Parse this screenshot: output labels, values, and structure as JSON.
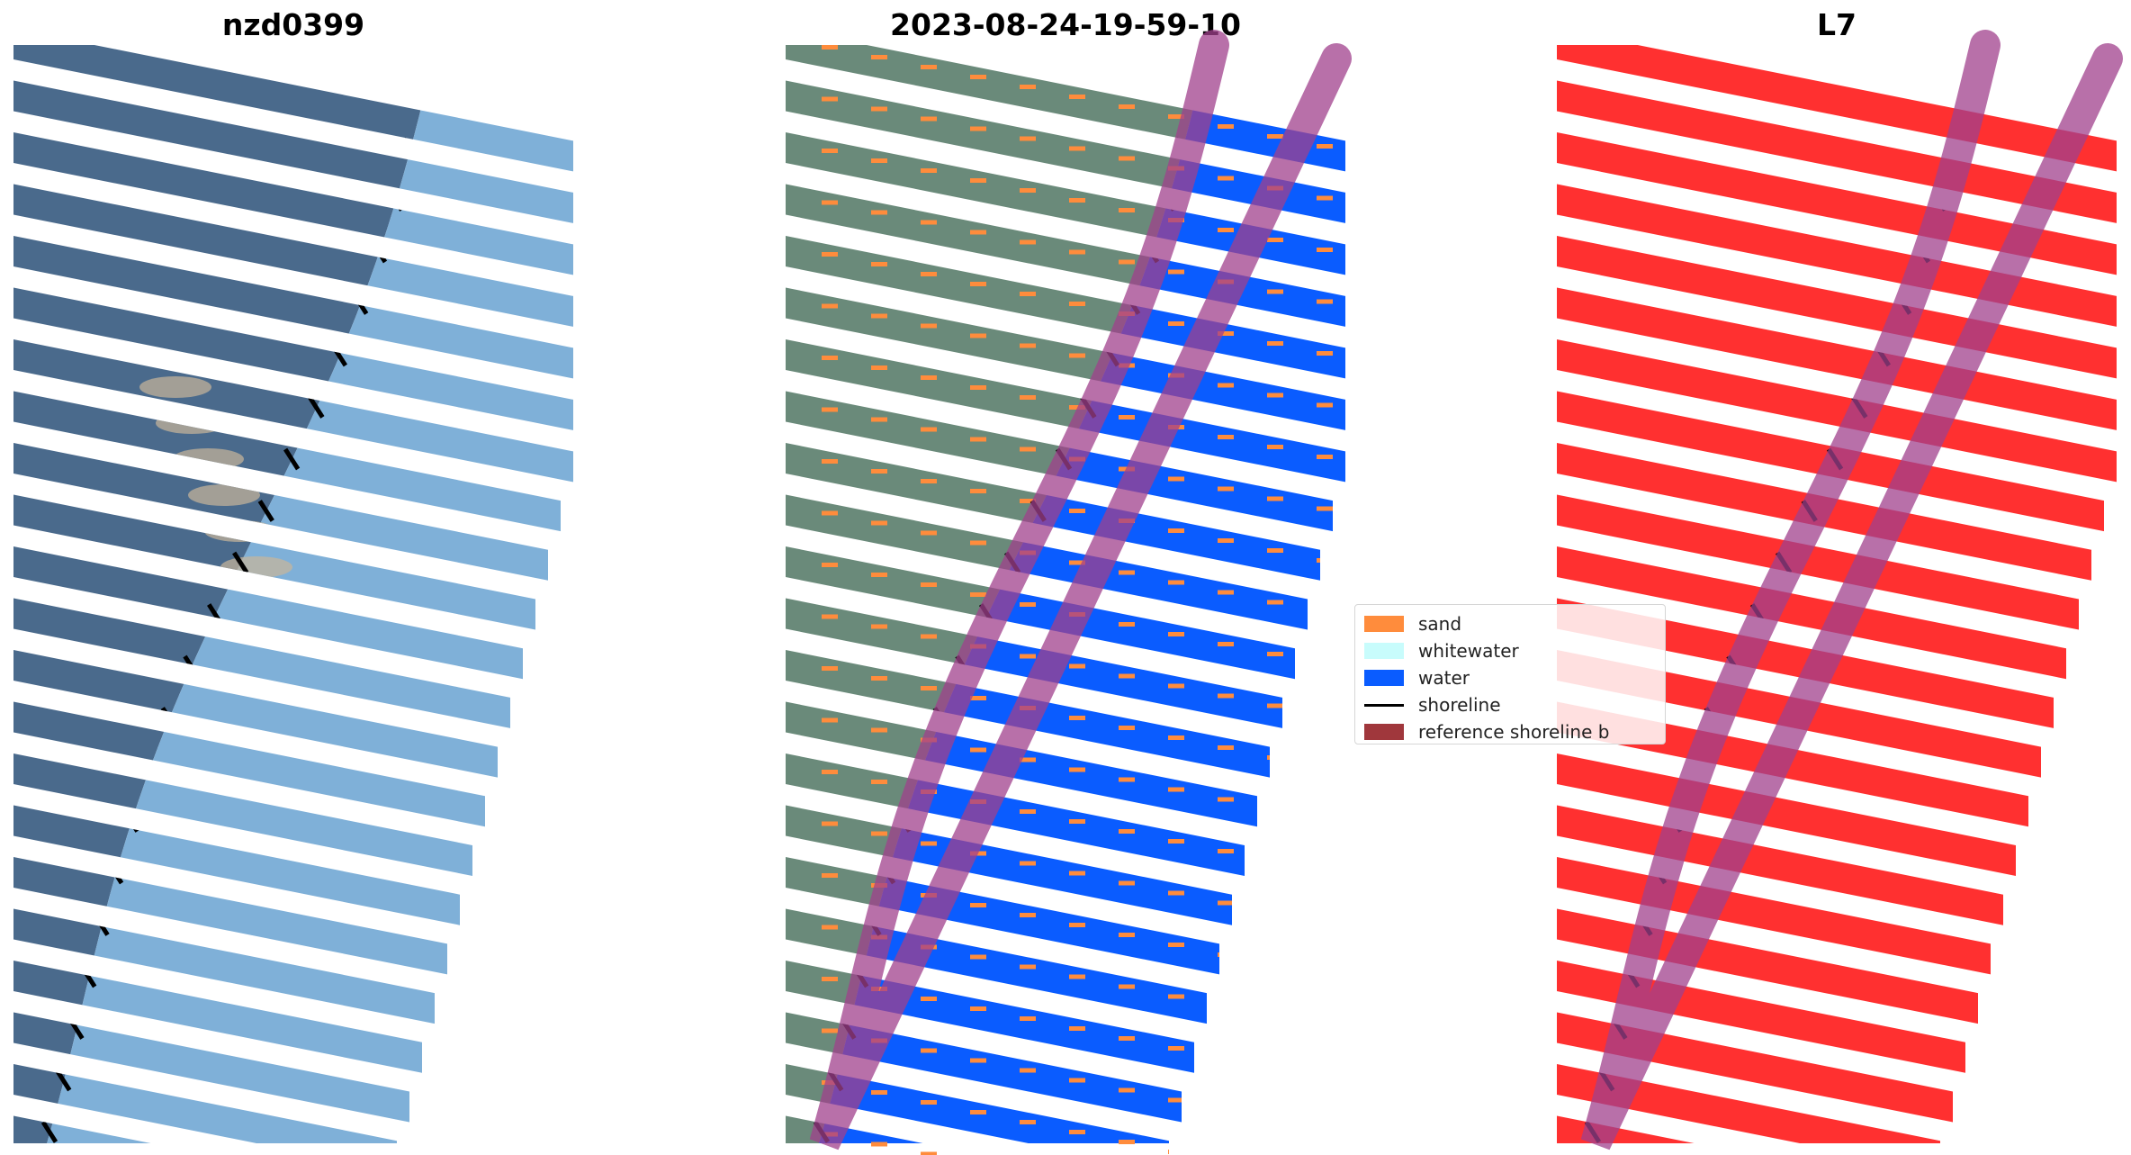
{
  "panels": [
    {
      "title": "nzd0399",
      "style": "rgb"
    },
    {
      "title": "2023-08-24-19-59-10",
      "style": "classified"
    },
    {
      "title": "L7",
      "style": "mask"
    }
  ],
  "legend": {
    "items": [
      {
        "label": "sand",
        "kind": "patch",
        "color": "#ff8c3c"
      },
      {
        "label": "whitewater",
        "kind": "patch",
        "color": "#c8fcfc"
      },
      {
        "label": "water",
        "kind": "patch",
        "color": "#0a5cff"
      },
      {
        "label": "shoreline",
        "kind": "line",
        "color": "#000000"
      },
      {
        "label": "reference shoreline b",
        "kind": "patch",
        "color": "#a0373c"
      }
    ]
  },
  "colors": {
    "land": "#4a6a8c",
    "sea": "#7fb0d8",
    "sand": "#ff8c3c",
    "water": "#0a5cff",
    "mask": "#ff3030",
    "buffer": "#a0408c",
    "shoreline": "#000000",
    "scanline_gap": "#ffffff"
  }
}
